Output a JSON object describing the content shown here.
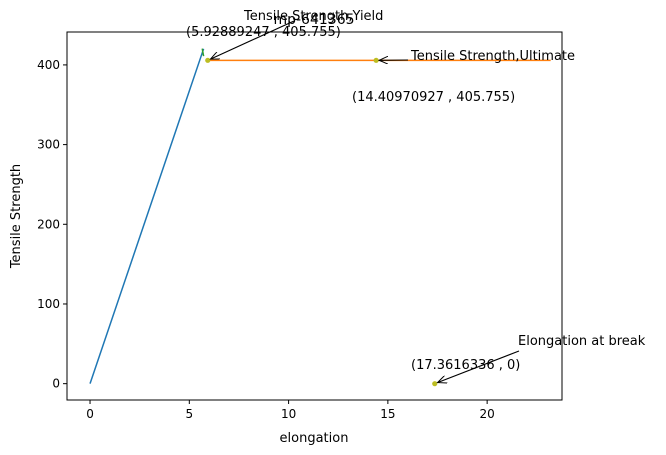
{
  "chart_data": {
    "type": "line",
    "title": "mp-641365",
    "xlabel": "elongation",
    "ylabel": "Tensile Strength",
    "xlim": [
      -1.16,
      23.77
    ],
    "ylim": [
      -20.5,
      441.3
    ],
    "grid": false,
    "x_ticks": [
      0,
      5,
      10,
      15,
      20
    ],
    "y_ticks": [
      0,
      100,
      200,
      300,
      400
    ],
    "series": [
      {
        "color": "#1f77b4",
        "points": [
          [
            0,
            0
          ],
          [
            5.72,
            420.2
          ]
        ]
      },
      {
        "color": "#ff7f0e",
        "points": [
          [
            5.93,
            405.755
          ],
          [
            23.2,
            405.755
          ]
        ]
      },
      {
        "color": "#2ca02c",
        "points": [
          [
            5.65,
            420.5
          ],
          [
            5.72,
            411.0
          ]
        ]
      }
    ],
    "markers": [
      {
        "x": 5.92889247,
        "y": 405.755,
        "color": "#bcbd22"
      },
      {
        "x": 14.40970927,
        "y": 405.755,
        "color": "#bcbd22"
      },
      {
        "x": 17.3616336,
        "y": 0,
        "color": "#bcbd22"
      }
    ],
    "annotations": [
      {
        "name": "yield",
        "label": "Tensile Strength,Yield",
        "coord_label": "(5.92889247 , 405.755)",
        "x": 5.92889247,
        "y": 405.755
      },
      {
        "name": "ultimate",
        "label": "Tensile Strength,Ultimate",
        "coord_label": "(14.40970927 , 405.755)",
        "x": 14.40970927,
        "y": 405.755
      },
      {
        "name": "break",
        "label": "Elongation at break",
        "coord_label": "(17.3616336 , 0)",
        "x": 17.3616336,
        "y": 0
      }
    ]
  }
}
